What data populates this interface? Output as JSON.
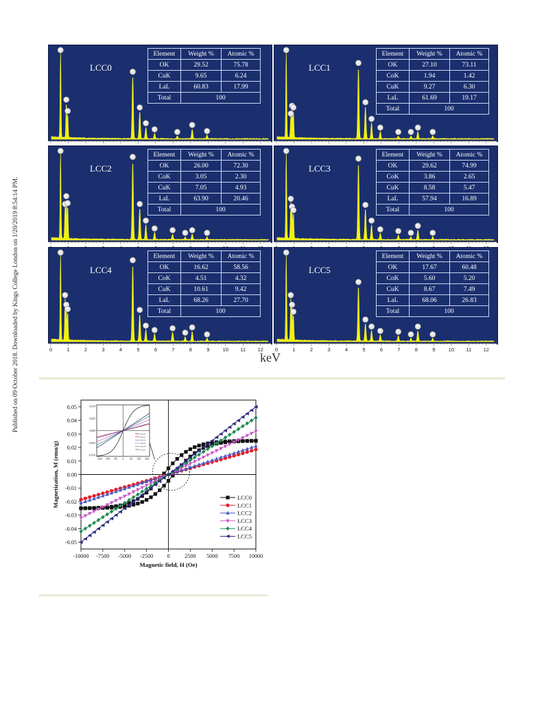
{
  "side_note": "Published on 09 October 2018. Downloaded by Kings College London on 1/20/2019 8:54:14 PM.",
  "edx": {
    "axis_unit": "keV",
    "panel_color": "#1b2f6e",
    "spectrum_color": "#f2f200",
    "x_ticks": [
      "0",
      "1",
      "2",
      "3",
      "4",
      "5",
      "6",
      "7",
      "8",
      "9",
      "10",
      "11",
      "12"
    ],
    "table_headers": [
      "Element",
      "Weight %",
      "Atomic %"
    ],
    "total_label": "Total",
    "total_value": "100",
    "panels": [
      {
        "label": "LCC0",
        "rows": [
          [
            "OK",
            "29.52",
            "75.78"
          ],
          [
            "CuK",
            "9.65",
            "6.24"
          ],
          [
            "LaL",
            "60.83",
            "17.99"
          ]
        ],
        "peaks": [
          [
            0.52,
            100
          ],
          [
            0.85,
            40
          ],
          [
            0.93,
            27
          ],
          [
            4.65,
            72
          ],
          [
            5.05,
            31
          ],
          [
            5.4,
            13
          ],
          [
            5.9,
            6
          ],
          [
            7.2,
            3
          ],
          [
            8.05,
            11
          ],
          [
            8.9,
            4
          ]
        ]
      },
      {
        "label": "LCC1",
        "rows": [
          [
            "OK",
            "27.10",
            "73.11"
          ],
          [
            "CoK",
            "1.94",
            "1.42"
          ],
          [
            "CuK",
            "9.27",
            "6.30"
          ],
          [
            "LaL",
            "61.69",
            "19.17"
          ]
        ],
        "peaks": [
          [
            0.52,
            100
          ],
          [
            0.78,
            24
          ],
          [
            0.85,
            33
          ],
          [
            0.93,
            31
          ],
          [
            4.65,
            82
          ],
          [
            5.05,
            37
          ],
          [
            5.4,
            18
          ],
          [
            5.9,
            8
          ],
          [
            6.93,
            3
          ],
          [
            7.65,
            3
          ],
          [
            8.05,
            8
          ],
          [
            8.9,
            3
          ]
        ]
      },
      {
        "label": "LCC2",
        "rows": [
          [
            "OK",
            "26.00",
            "72.30"
          ],
          [
            "CoK",
            "3.05",
            "2.30"
          ],
          [
            "CuK",
            "7.05",
            "4.93"
          ],
          [
            "LaL",
            "63.90",
            "20.46"
          ]
        ],
        "peaks": [
          [
            0.52,
            100
          ],
          [
            0.78,
            36
          ],
          [
            0.85,
            45
          ],
          [
            0.93,
            37
          ],
          [
            4.65,
            90
          ],
          [
            5.05,
            36
          ],
          [
            5.4,
            17
          ],
          [
            5.9,
            8
          ],
          [
            6.93,
            6
          ],
          [
            7.65,
            3
          ],
          [
            8.05,
            6
          ],
          [
            8.9,
            3
          ]
        ]
      },
      {
        "label": "LCC3",
        "rows": [
          [
            "OK",
            "29.62",
            "74.99"
          ],
          [
            "CoK",
            "3.86",
            "2.65"
          ],
          [
            "CuK",
            "8.58",
            "5.47"
          ],
          [
            "LaL",
            "57.94",
            "16.89"
          ]
        ],
        "peaks": [
          [
            0.52,
            100
          ],
          [
            0.78,
            42
          ],
          [
            0.85,
            33
          ],
          [
            0.93,
            29
          ],
          [
            4.65,
            88
          ],
          [
            5.05,
            35
          ],
          [
            5.4,
            17
          ],
          [
            5.9,
            7
          ],
          [
            6.93,
            5
          ],
          [
            7.65,
            3
          ],
          [
            8.05,
            11
          ],
          [
            8.9,
            3
          ]
        ]
      },
      {
        "label": "LCC4",
        "rows": [
          [
            "OK",
            "16.62",
            "58.56"
          ],
          [
            "CoK",
            "4.51",
            "4.32"
          ],
          [
            "CuK",
            "10.61",
            "9.42"
          ],
          [
            "LaL",
            "68.26",
            "27.70"
          ]
        ],
        "peaks": [
          [
            0.52,
            100
          ],
          [
            0.78,
            48
          ],
          [
            0.85,
            37
          ],
          [
            0.93,
            32
          ],
          [
            4.65,
            88
          ],
          [
            5.05,
            31
          ],
          [
            5.4,
            13
          ],
          [
            5.9,
            8
          ],
          [
            6.93,
            10
          ],
          [
            7.65,
            5
          ],
          [
            8.05,
            11
          ],
          [
            8.9,
            3
          ]
        ]
      },
      {
        "label": "LCC5",
        "rows": [
          [
            "OK",
            "17.67",
            "60.48"
          ],
          [
            "CoK",
            "5.60",
            "5.20"
          ],
          [
            "CuK",
            "8.67",
            "7.49"
          ],
          [
            "LaL",
            "68.06",
            "26.83"
          ]
        ],
        "peaks": [
          [
            0.52,
            100
          ],
          [
            0.78,
            48
          ],
          [
            0.85,
            37
          ],
          [
            0.93,
            29
          ],
          [
            4.65,
            63
          ],
          [
            5.05,
            20
          ],
          [
            5.4,
            12
          ],
          [
            5.9,
            7
          ],
          [
            6.93,
            6
          ],
          [
            7.65,
            3
          ],
          [
            8.05,
            12
          ],
          [
            8.9,
            3
          ]
        ]
      }
    ]
  },
  "chart_data": {
    "type": "line",
    "xlabel": "Magnetic field, H (Oe)",
    "ylabel": "Magnetization, M (emu/g)",
    "xlim": [
      -10000,
      10000
    ],
    "ylim": [
      -0.055,
      0.055
    ],
    "x_ticks": [
      -10000,
      -7500,
      -5000,
      -2500,
      0,
      2500,
      5000,
      7500,
      10000
    ],
    "y_ticks": [
      -0.05,
      -0.04,
      -0.03,
      -0.02,
      -0.01,
      0.0,
      0.01,
      0.02,
      0.03,
      0.04,
      0.05
    ],
    "legend_position": "bottom-right",
    "series": [
      {
        "name": "LCC0",
        "color": "#111111",
        "marker": "square",
        "kind": "ferro",
        "ms": 0.025,
        "slope": 2e-09
      },
      {
        "name": "LCC1",
        "color": "#e5202a",
        "marker": "circle",
        "kind": "para",
        "slope": 1.85e-06
      },
      {
        "name": "LCC2",
        "color": "#4a5bc0",
        "marker": "triangle-up",
        "kind": "para",
        "slope": 2.1e-06
      },
      {
        "name": "LCC3",
        "color": "#cc55c8",
        "marker": "triangle-down",
        "kind": "para",
        "slope": 3.2e-06
      },
      {
        "name": "LCC4",
        "color": "#1f8a52",
        "marker": "diamond",
        "kind": "para",
        "slope": 4.2e-06
      },
      {
        "name": "LCC5",
        "color": "#2e2a80",
        "marker": "triangle-left",
        "kind": "para",
        "slope": 5e-06
      }
    ],
    "inset": {
      "x_ticks": [
        "-250",
        "-150",
        "-50",
        "0",
        "50",
        "150",
        "250"
      ],
      "y_ticks": [
        "0.010",
        "0.005",
        "0.000",
        "-0.005",
        "-0.010"
      ]
    }
  }
}
